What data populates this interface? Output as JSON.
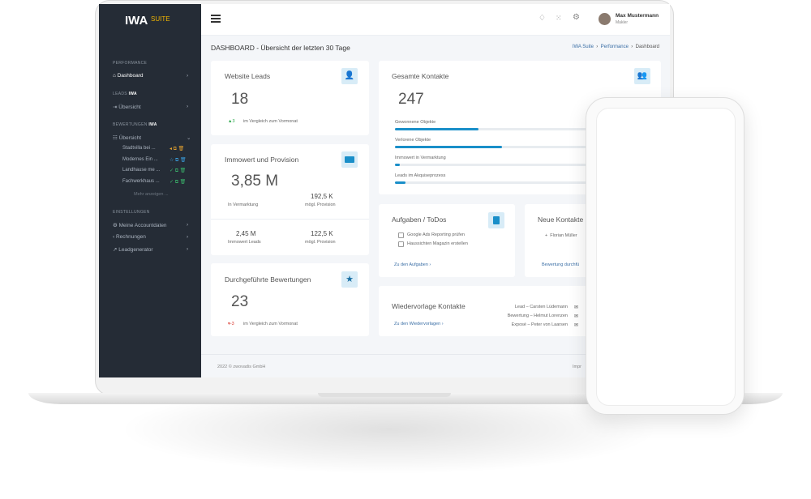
{
  "sidebar": {
    "logo": "IWA",
    "logo_suffix": "SUITE",
    "sections": [
      {
        "title": "PERFORMANCE",
        "items": [
          "Dashboard"
        ]
      },
      {
        "title": "LEADS",
        "badge": "IWA",
        "items": [
          "Übersicht"
        ]
      },
      {
        "title": "BEWERTUNGEN",
        "badge": "IWA",
        "items": [
          "Übersicht"
        ],
        "subitems": [
          "Stadtvilla bei ...",
          "Modernes Ein ...",
          "Landhause me ...",
          "Fachwerkhaus ..."
        ],
        "more": "Mehr anzeigen ..."
      },
      {
        "title": "EINSTELLUNGEN",
        "items": [
          "Meine Accountdaten",
          "Rechnungen",
          "Leadgenerator"
        ]
      }
    ]
  },
  "header": {
    "user_name": "Max Mustermann",
    "user_role": "Makler"
  },
  "page": {
    "title": "DASHBOARD - Übersicht der letzten 30 Tage",
    "breadcrumb": [
      "IWA Suite",
      "Performance",
      "Dashboard"
    ]
  },
  "leads_card": {
    "title": "Website Leads",
    "value": "18",
    "trend": "3",
    "trend_text": "im Vergleich zum Vormonat"
  },
  "immowert_card": {
    "title": "Immowert und Provision",
    "value": "3,85 M",
    "value_label": "In Vermarktung",
    "provision": "192,5 K",
    "provision_label": "mögl. Provision",
    "leads_value": "2,45 M",
    "leads_label": "Immowert Leads",
    "leads_provision": "122,5 K",
    "leads_provision_label": "mögl. Provision"
  },
  "ratings_card": {
    "title": "Durchgeführte Bewertungen",
    "value": "23",
    "trend": "-3",
    "trend_text": "im Vergleich zum Vormonat"
  },
  "contacts_card": {
    "title": "Gesamte Kontakte",
    "value": "247",
    "bars": [
      {
        "label": "Gewonnene Objekte",
        "value": 32
      },
      {
        "label": "Verlorene Objekte",
        "value": 41
      },
      {
        "label": "Immowert in Vermarktung",
        "value": 2
      },
      {
        "label": "Leads im Akquiseprozess",
        "value": 4
      }
    ]
  },
  "tasks_card": {
    "title": "Aufgaben / ToDos",
    "tasks": [
      "Google Ads Reporting prüfen",
      "Haussichten Magazin erstellen"
    ],
    "link": "Zu den Aufgaben"
  },
  "new_contacts_card": {
    "title": "Neue Kontakte",
    "contact": "Florian Müller",
    "link": "Bewertung durchfü"
  },
  "followup_card": {
    "title": "Wiedervorlage Kontakte",
    "link": "Zu den Wiedervorlagen",
    "items": [
      "Lead – Carsten Lüdemann",
      "Bewertung – Helmut Lorenzen",
      "Exposé – Peter von Laarsen"
    ]
  },
  "footer": {
    "copyright": "2022 © zwovadis GmbH",
    "link": "Impr"
  }
}
